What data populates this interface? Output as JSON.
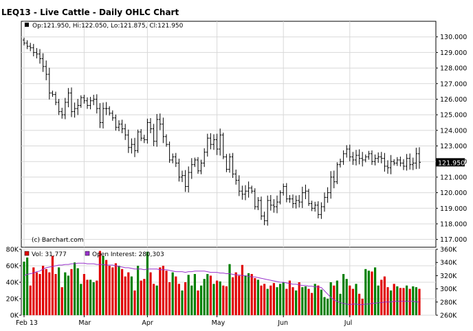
{
  "chart_data": [
    {
      "type": "ohlc",
      "title": "LEQ13 - Live Cattle - Daily OHLC Chart",
      "header_readout": "Op:121.950, Hi:122.050, Lo:121.875, Cl:121.950",
      "watermark": "(c) Barchart.com",
      "last_price_label": "121.950",
      "ylim": [
        116.5,
        131.0
      ],
      "y_ticks": [
        "130.000",
        "129.000",
        "128.000",
        "127.000",
        "126.000",
        "125.000",
        "124.000",
        "123.000",
        "122.000",
        "121.000",
        "120.000",
        "119.000",
        "118.000",
        "117.000"
      ],
      "y_tick_values": [
        130,
        129,
        128,
        127,
        126,
        125,
        124,
        123,
        122,
        121,
        120,
        119,
        118,
        117
      ],
      "x_ticks": [
        "Feb 13",
        "Mar",
        "Apr",
        "May",
        "Jun",
        "Jul"
      ],
      "x_tick_index": [
        0,
        19,
        39,
        61,
        82,
        103
      ],
      "grid": true,
      "closes": [
        129.6,
        129.4,
        129.3,
        129.0,
        128.9,
        128.6,
        128.1,
        127.6,
        126.4,
        126.3,
        125.8,
        125.2,
        125.0,
        125.8,
        126.4,
        125.2,
        125.4,
        125.6,
        126.1,
        125.9,
        125.6,
        125.9,
        126.0,
        125.4,
        124.5,
        125.4,
        125.4,
        125.1,
        124.8,
        124.2,
        124.4,
        124.1,
        123.7,
        122.9,
        123.1,
        122.7,
        123.9,
        123.5,
        123.4,
        124.5,
        124.1,
        123.3,
        124.7,
        124.4,
        123.6,
        123.1,
        122.1,
        122.3,
        121.9,
        121.0,
        121.1,
        120.4,
        121.3,
        121.8,
        122.1,
        121.4,
        121.9,
        122.6,
        123.5,
        123.1,
        123.4,
        122.8,
        123.7,
        122.3,
        121.5,
        122.3,
        121.2,
        120.8,
        120.1,
        119.9,
        120.1,
        120.3,
        120.1,
        119.1,
        119.5,
        118.5,
        118.2,
        119.5,
        119.2,
        119.1,
        119.4,
        120.0,
        120.4,
        119.6,
        119.6,
        119.3,
        119.5,
        119.4,
        120.0,
        120.1,
        119.3,
        119.0,
        119.2,
        118.6,
        119.1,
        119.7,
        120.0,
        121.0,
        120.7,
        121.8,
        122.0,
        122.5,
        122.8,
        122.3,
        122.1,
        122.4,
        122.2,
        122.1,
        122.3,
        122.5,
        122.0,
        122.2,
        122.3,
        122.2,
        121.7,
        121.6,
        122.0,
        121.9,
        122.1,
        121.9,
        121.7,
        122.2,
        121.8,
        121.9,
        122.5,
        121.95
      ]
    },
    {
      "type": "bar_line",
      "volume_label": "Vol: 31,777",
      "oi_label": "Open Interest: 280,303",
      "left_ticks": [
        "80K",
        "60K",
        "40K",
        "20K",
        "0K"
      ],
      "left_tick_values": [
        80000,
        60000,
        40000,
        20000,
        0
      ],
      "right_ticks": [
        "360K",
        "340K",
        "320K",
        "300K",
        "280K",
        "260K"
      ],
      "right_tick_values": [
        360000,
        340000,
        320000,
        300000,
        280000,
        260000
      ],
      "vol_ylim": [
        0,
        80000
      ],
      "oi_ylim": [
        260000,
        360000
      ],
      "colors": {
        "up": "#008000",
        "down": "#e00000",
        "oi_line": "#9933cc",
        "neutral": "#000080"
      },
      "volume": [
        65,
        70,
        36,
        58,
        52,
        50,
        60,
        56,
        52,
        72,
        50,
        58,
        34,
        52,
        48,
        56,
        64,
        57,
        38,
        50,
        43,
        43,
        40,
        42,
        78,
        72,
        67,
        60,
        58,
        63,
        60,
        56,
        47,
        52,
        47,
        30,
        60,
        42,
        44,
        77,
        52,
        38,
        36,
        58,
        60,
        54,
        40,
        52,
        47,
        38,
        30,
        40,
        49,
        36,
        50,
        30,
        36,
        44,
        50,
        48,
        38,
        42,
        41,
        36,
        35,
        62,
        46,
        52,
        48,
        61,
        48,
        51,
        50,
        45,
        43,
        36,
        38,
        32,
        36,
        39,
        34,
        38,
        40,
        32,
        42,
        34,
        30,
        40,
        34,
        35,
        32,
        27,
        38,
        36,
        31,
        22,
        20,
        40,
        36,
        42,
        26,
        50,
        44,
        36,
        32,
        38,
        26,
        20,
        56,
        54,
        53,
        58,
        36,
        43,
        47,
        34,
        30,
        38,
        35,
        33,
        33,
        36,
        32,
        35,
        34,
        32
      ],
      "volume_up": [
        1,
        1,
        0,
        0,
        0,
        0,
        0,
        0,
        0,
        0,
        0,
        1,
        0,
        1,
        1,
        0,
        1,
        1,
        1,
        0,
        0,
        1,
        1,
        0,
        0,
        1,
        0,
        0,
        0,
        0,
        1,
        0,
        0,
        0,
        1,
        0,
        1,
        0,
        0,
        1,
        0,
        0,
        1,
        0,
        0,
        0,
        0,
        1,
        0,
        0,
        1,
        0,
        1,
        1,
        1,
        0,
        1,
        1,
        1,
        0,
        1,
        0,
        1,
        0,
        0,
        1,
        0,
        0,
        0,
        0,
        1,
        1,
        0,
        0,
        1,
        0,
        0,
        1,
        0,
        0,
        1,
        1,
        1,
        0,
        0,
        0,
        1,
        0,
        1,
        1,
        0,
        0,
        1,
        0,
        1,
        1,
        1,
        1,
        0,
        1,
        1,
        1,
        1,
        0,
        0,
        1,
        0,
        0,
        1,
        1,
        0,
        1,
        1,
        0,
        0,
        0,
        1,
        0,
        1,
        0,
        0,
        1,
        0,
        1,
        1,
        0
      ],
      "open_interest": [
        320,
        322,
        323,
        324,
        326,
        327,
        330,
        332,
        333,
        334,
        335,
        336,
        336,
        337,
        337,
        338,
        338,
        339,
        339,
        339,
        338,
        338,
        338,
        337,
        337,
        337,
        336,
        336,
        336,
        335,
        334,
        333,
        332,
        332,
        331,
        330,
        330,
        330,
        329,
        330,
        330,
        330,
        330,
        329,
        329,
        329,
        328,
        327,
        326,
        326,
        326,
        325,
        326,
        326,
        327,
        327,
        327,
        327,
        326,
        325,
        325,
        325,
        324,
        324,
        323,
        323,
        322,
        321,
        321,
        320,
        320,
        319,
        318,
        318,
        317,
        316,
        315,
        314,
        313,
        312,
        311,
        310,
        310,
        309,
        308,
        307,
        307,
        306,
        305,
        305,
        304,
        304,
        303,
        303,
        302,
        297,
        292,
        287,
        283,
        281,
        279,
        278,
        277,
        276,
        277,
        277,
        276,
        276,
        277,
        277,
        278,
        278,
        279,
        279,
        280,
        280,
        280,
        281,
        281,
        281,
        281,
        281,
        281,
        281,
        280,
        280
      ]
    }
  ]
}
